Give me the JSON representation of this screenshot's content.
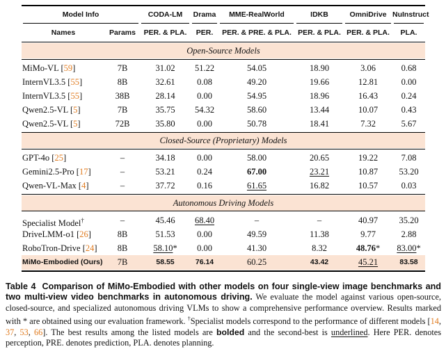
{
  "table": {
    "group_headers": {
      "model_info": "Model Info",
      "coda_lm": "CODA-LM",
      "drama": "Drama",
      "mme_realworld": "MME-RealWorld",
      "idkb": "IDKB",
      "omnidrive": "OmniDrive",
      "nuinstruct": "NuInstruct"
    },
    "sub_headers": {
      "names": "Names",
      "params": "Params",
      "coda_lm": "PER. & PLA.",
      "drama": "PER.",
      "mme_realworld": "PER. & PRE. & PLA.",
      "idkb": "PER. & PLA.",
      "omnidrive": "PER. & PLA.",
      "nuinstruct": "PLA."
    },
    "sections": [
      {
        "title": "Open-Source Models",
        "rows": [
          {
            "name": "MiMo-VL",
            "cite": "59",
            "params": "7B",
            "coda": "31.02",
            "drama": "51.22",
            "mme": "54.05",
            "idkb": "18.90",
            "omni": "3.06",
            "nu": "0.68"
          },
          {
            "name": "InternVL3.5",
            "cite": "55",
            "params": "8B",
            "coda": "32.61",
            "drama": "0.08",
            "mme": "49.20",
            "idkb": "19.66",
            "omni": "12.81",
            "nu": "0.00"
          },
          {
            "name": "InternVL3.5",
            "cite": "55",
            "params": "38B",
            "coda": "28.14",
            "drama": "0.00",
            "mme": "54.95",
            "idkb": "18.96",
            "omni": "16.43",
            "nu": "0.24"
          },
          {
            "name": "Qwen2.5-VL",
            "cite": "5",
            "params": "7B",
            "coda": "35.75",
            "drama": "54.32",
            "mme": "58.60",
            "idkb": "13.44",
            "omni": "10.07",
            "nu": "0.43"
          },
          {
            "name": "Qwen2.5-VL",
            "cite": "5",
            "params": "72B",
            "coda": "35.80",
            "drama": "0.00",
            "mme": "50.78",
            "idkb": "18.41",
            "omni": "7.32",
            "nu": "5.67"
          }
        ]
      },
      {
        "title": "Closed-Source (Proprietary) Models",
        "rows": [
          {
            "name": "GPT-4o",
            "cite": "25",
            "params": "–",
            "coda": "34.18",
            "drama": "0.00",
            "mme": "58.00",
            "idkb": "20.65",
            "omni": "19.22",
            "nu": "7.08"
          },
          {
            "name": "Gemini2.5-Pro",
            "cite": "17",
            "params": "–",
            "coda": "53.21",
            "drama": "0.24",
            "mme": "67.00",
            "idkb": "23.21",
            "omni": "10.87",
            "nu": "53.20"
          },
          {
            "name": "Qwen-VL-Max",
            "cite": "4",
            "params": "–",
            "coda": "37.72",
            "drama": "0.16",
            "mme": "61.65",
            "idkb": "16.82",
            "omni": "10.57",
            "nu": "0.03"
          }
        ]
      },
      {
        "title": "Autonomous Driving Models",
        "rows": [
          {
            "name": "Specialist Model",
            "cite": "",
            "params": "–",
            "coda": "45.46",
            "drama": "68.40",
            "mme": "–",
            "idkb": "–",
            "omni": "40.97",
            "nu": "35.20"
          },
          {
            "name": "DriveLMM-o1",
            "cite": "26",
            "params": "8B",
            "coda": "51.53",
            "drama": "0.00",
            "mme": "49.59",
            "idkb": "11.38",
            "omni": "9.77",
            "nu": "2.88"
          },
          {
            "name": "RoboTron-Drive",
            "cite": "24",
            "params": "8B",
            "coda": "58.10",
            "drama": "0.00",
            "mme": "41.30",
            "idkb": "8.32",
            "omni": "48.76",
            "nu": "83.00"
          },
          {
            "name": "MiMo-Embodied (Ours)",
            "cite": "",
            "params": "7B",
            "coda": "58.55",
            "drama": "76.14",
            "mme": "60.25",
            "idkb": "43.42",
            "omni": "45.21",
            "nu": "83.58"
          }
        ]
      }
    ],
    "marks": {
      "dagger": "†",
      "asterisk": "*"
    }
  },
  "caption": {
    "label": "Table 4",
    "heading": "Comparison of MiMo-Embodied with other models on four single-view image benchmarks and two multi-view video benchmarks in autonomous driving.",
    "t1": "We evaluate the model against various open-source, closed-source, and specialized autonomous driving VLMs to show a comprehensive performance overview. Results marked with * are obtained using our evaluation framework.",
    "t2": "Specialist models correspond to the performance of different models [",
    "cites": [
      "14",
      "37",
      "53",
      "66"
    ],
    "sep": ", ",
    "t3": "]. The best results among the listed models are",
    "bolded": "bolded",
    "t4": "and the second-best is",
    "underlined": "underlined",
    "t5": ". Here PER. denotes perception, PRE. denotes prediction, PLA. denotes planning."
  }
}
